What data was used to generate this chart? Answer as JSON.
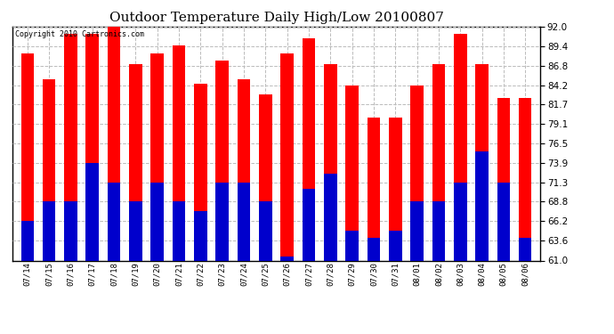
{
  "title": "Outdoor Temperature Daily High/Low 20100807",
  "copyright": "Copyright 2010 Cartronics.com",
  "dates": [
    "07/14",
    "07/15",
    "07/16",
    "07/17",
    "07/18",
    "07/19",
    "07/20",
    "07/21",
    "07/22",
    "07/23",
    "07/24",
    "07/25",
    "07/26",
    "07/27",
    "07/28",
    "07/29",
    "07/30",
    "07/31",
    "08/01",
    "08/02",
    "08/03",
    "08/04",
    "08/05",
    "08/06"
  ],
  "highs": [
    88.5,
    85.0,
    91.0,
    91.0,
    92.0,
    87.0,
    88.5,
    89.5,
    84.5,
    87.5,
    85.0,
    83.0,
    88.5,
    90.5,
    87.0,
    84.2,
    80.0,
    80.0,
    84.2,
    87.0,
    91.0,
    87.0,
    82.5,
    82.5
  ],
  "lows": [
    66.2,
    68.8,
    68.8,
    73.9,
    71.3,
    68.8,
    71.3,
    68.8,
    67.5,
    71.3,
    71.3,
    68.8,
    61.5,
    70.5,
    72.5,
    65.0,
    64.0,
    65.0,
    68.8,
    68.8,
    71.3,
    75.5,
    71.3,
    64.0
  ],
  "ylim_min": 61.0,
  "ylim_max": 92.0,
  "yticks": [
    61.0,
    63.6,
    66.2,
    68.8,
    71.3,
    73.9,
    76.5,
    79.1,
    81.7,
    84.2,
    86.8,
    89.4,
    92.0
  ],
  "high_color": "#ff0000",
  "low_color": "#0000cc",
  "bg_color": "#ffffff",
  "grid_color": "#bbbbbb",
  "title_fontsize": 11,
  "bar_width": 0.6
}
